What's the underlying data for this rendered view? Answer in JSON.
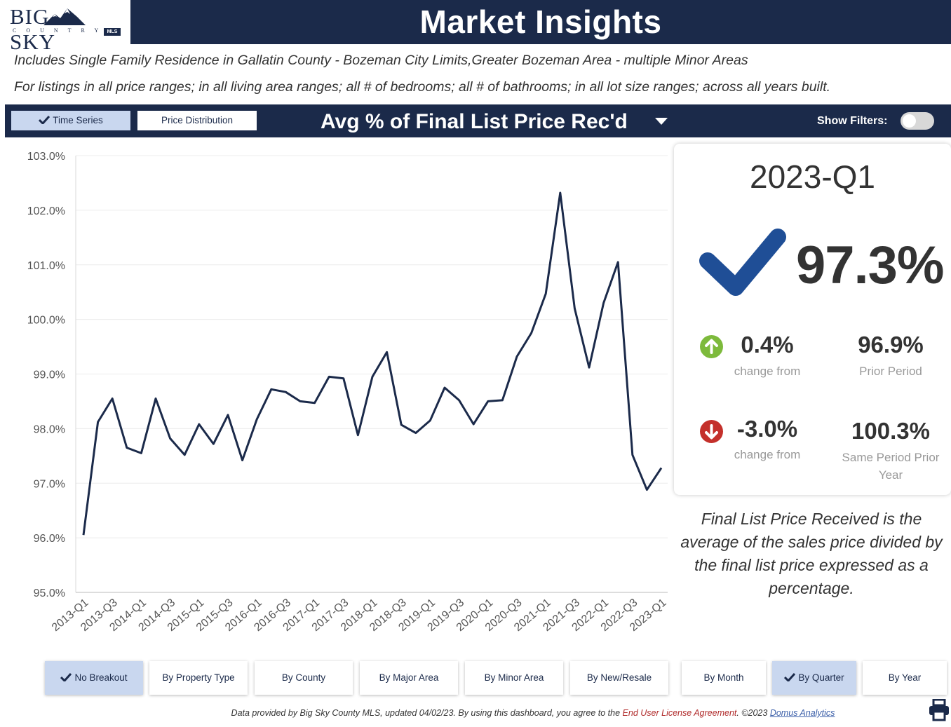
{
  "header": {
    "logo_text_left": "BIG",
    "logo_text_right": "SKY",
    "logo_sub": "COUNTRY",
    "logo_badge": "MLS",
    "title": "Market Insights"
  },
  "description": {
    "line1": "Includes Single Family Residence in Gallatin County - Bozeman City Limits,Greater Bozeman Area - multiple Minor Areas",
    "line2": "For listings in all price ranges; in all living area ranges; all # of bedrooms; all # of bathrooms; in all lot size ranges; across all years built."
  },
  "toolbar": {
    "time_series_label": "Time Series",
    "price_distribution_label": "Price Distribution",
    "metric_title": "Avg % of Final List Price Rec'd",
    "show_filters_label": "Show Filters:"
  },
  "colors": {
    "navy": "#1b2a4a",
    "active_button": "#c9d7ef",
    "line": "#1b2a4a",
    "check": "#1f4e96",
    "up": "#7dba3c",
    "down": "#c4302b"
  },
  "summary": {
    "period": "2023-Q1",
    "value": "97.3%",
    "change_prior": "0.4%",
    "change_prior_label": "change from",
    "prior_value": "96.9%",
    "prior_label": "Prior Period",
    "change_year": "-3.0%",
    "change_year_label": "change from",
    "year_value": "100.3%",
    "year_label": "Same Period Prior Year"
  },
  "explanation": "Final List Price Received is the average of the sales price divided by the final list price expressed as a percentage.",
  "breakouts": [
    "No Breakout",
    "By Property Type",
    "By County",
    "By Major Area",
    "By Minor Area",
    "By New/Resale",
    "By Month",
    "By Quarter",
    "By Year"
  ],
  "footer": {
    "prefix": "Data provided by Big Sky County MLS, updated 04/02/23.  By using this dashboard, you agree to the ",
    "eula": "End User License Agreement",
    "middle": ".  ©2023 ",
    "link": "Domus Analytics"
  },
  "chart_data": {
    "type": "line",
    "ylim": [
      95.0,
      103.0
    ],
    "y_ticks": [
      "95.0%",
      "96.0%",
      "97.0%",
      "98.0%",
      "99.0%",
      "100.0%",
      "101.0%",
      "102.0%",
      "103.0%"
    ],
    "x_tick_labels": [
      "2013-Q1",
      "2013-Q3",
      "2014-Q1",
      "2014-Q3",
      "2015-Q1",
      "2015-Q3",
      "2016-Q1",
      "2016-Q3",
      "2017-Q1",
      "2017-Q3",
      "2018-Q1",
      "2018-Q3",
      "2019-Q1",
      "2019-Q3",
      "2020-Q1",
      "2020-Q3",
      "2021-Q1",
      "2021-Q3",
      "2022-Q1",
      "2022-Q3",
      "2023-Q1"
    ],
    "x": [
      "2013-Q1",
      "2013-Q2",
      "2013-Q3",
      "2013-Q4",
      "2014-Q1",
      "2014-Q2",
      "2014-Q3",
      "2014-Q4",
      "2015-Q1",
      "2015-Q2",
      "2015-Q3",
      "2015-Q4",
      "2016-Q1",
      "2016-Q2",
      "2016-Q3",
      "2016-Q4",
      "2017-Q1",
      "2017-Q2",
      "2017-Q3",
      "2017-Q4",
      "2018-Q1",
      "2018-Q2",
      "2018-Q3",
      "2018-Q4",
      "2019-Q1",
      "2019-Q2",
      "2019-Q3",
      "2019-Q4",
      "2020-Q1",
      "2020-Q2",
      "2020-Q3",
      "2020-Q4",
      "2021-Q1",
      "2021-Q2",
      "2021-Q3",
      "2021-Q4",
      "2022-Q1",
      "2022-Q2",
      "2022-Q3",
      "2022-Q4",
      "2023-Q1"
    ],
    "values": [
      96.05,
      98.12,
      98.55,
      97.65,
      97.55,
      98.55,
      97.82,
      97.52,
      98.08,
      97.72,
      98.25,
      97.42,
      98.17,
      98.72,
      98.67,
      98.5,
      98.47,
      98.95,
      98.92,
      97.88,
      98.95,
      99.4,
      98.07,
      97.92,
      98.15,
      98.75,
      98.52,
      98.08,
      98.5,
      98.52,
      99.32,
      99.75,
      100.47,
      102.32,
      100.2,
      99.12,
      100.3,
      101.05,
      97.52,
      96.88,
      97.28
    ]
  }
}
